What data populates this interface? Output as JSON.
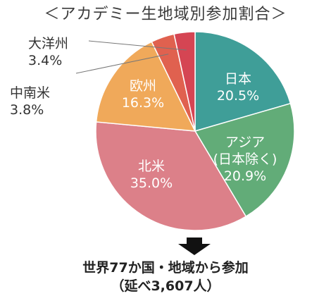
{
  "title": "＜アカデミー生地域別参加割合＞",
  "chart_data": {
    "type": "pie",
    "slices": [
      {
        "name": "日本",
        "label": [
          "日本",
          "20.5%"
        ],
        "value": 20.5,
        "color": "#3f9e98",
        "text_color": "#ffffff"
      },
      {
        "name": "アジア（日本除く）",
        "label": [
          "アジア",
          "(日本除く)",
          "20.9%"
        ],
        "value": 20.9,
        "color": "#62ac78",
        "text_color": "#ffffff"
      },
      {
        "name": "北米",
        "label": [
          "北米",
          "35.0%"
        ],
        "value": 35.0,
        "color": "#dc8089",
        "text_color": "#ffffff"
      },
      {
        "name": "欧州",
        "label": [
          "欧州",
          "16.3%"
        ],
        "value": 16.3,
        "color": "#f0a95a",
        "text_color": "#ffffff"
      },
      {
        "name": "中南米",
        "label": [
          "中南米",
          "3.8%"
        ],
        "value": 3.8,
        "color": "#e0614f",
        "text_color": "#333333"
      },
      {
        "name": "大洋州",
        "label": [
          "大洋州",
          "3.4%"
        ],
        "value": 3.4,
        "color": "#d54553",
        "text_color": "#333333"
      }
    ]
  },
  "footer": {
    "line1": "世界77か国・地域から参加",
    "line2": "（延べ3,607人）"
  }
}
